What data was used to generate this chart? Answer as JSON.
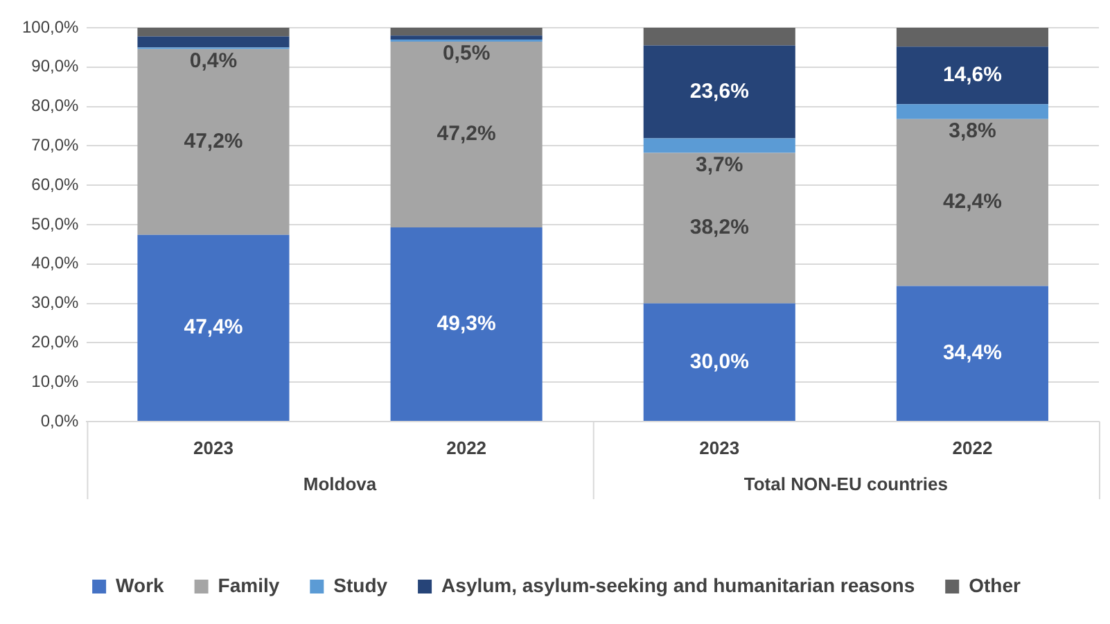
{
  "chart_data": {
    "type": "bar",
    "stacked": true,
    "categories": [
      "2023",
      "2022",
      "2023",
      "2022"
    ],
    "series": [
      {
        "name": "Work",
        "color": "#4472c4",
        "values": [
          47.4,
          49.3,
          30.0,
          34.4
        ],
        "value_labels": [
          "47,4%",
          "49,3%",
          "30,0%",
          "34,4%"
        ]
      },
      {
        "name": "Family",
        "color": "#a5a5a5",
        "values": [
          47.2,
          47.2,
          38.2,
          42.4
        ],
        "value_labels": [
          "47,2%",
          "47,2%",
          "38,2%",
          "42,4%"
        ]
      },
      {
        "name": "Study",
        "color": "#5b9bd5",
        "values": [
          0.4,
          0.5,
          3.7,
          3.8
        ],
        "value_labels": [
          "0,4%",
          "0,5%",
          "3,7%",
          "3,8%"
        ]
      },
      {
        "name": "Asylum, asylum-seeking and humanitarian reasons",
        "color": "#264478",
        "values": [
          2.8,
          1.0,
          23.6,
          14.6
        ],
        "value_labels": [
          null,
          null,
          "23,6%",
          "14,6%"
        ]
      },
      {
        "name": "Other",
        "color": "#636363",
        "values": [
          2.2,
          2.0,
          4.5,
          4.8
        ],
        "value_labels": [
          null,
          null,
          null,
          null
        ]
      }
    ],
    "ylim": [
      0,
      100
    ],
    "yticks": [
      {
        "value": 0,
        "label": "0,0%"
      },
      {
        "value": 10,
        "label": "10,0%"
      },
      {
        "value": 20,
        "label": "20,0%"
      },
      {
        "value": 30,
        "label": "30,0%"
      },
      {
        "value": 40,
        "label": "40,0%"
      },
      {
        "value": 50,
        "label": "50,0%"
      },
      {
        "value": 60,
        "label": "60,0%"
      },
      {
        "value": 70,
        "label": "70,0%"
      },
      {
        "value": 80,
        "label": "80,0%"
      },
      {
        "value": 90,
        "label": "90,0%"
      },
      {
        "value": 100,
        "label": "100,0%"
      }
    ],
    "grid": "y",
    "legend": "bottom",
    "annotations": [
      "Moldova",
      "Total NON-EU countries"
    ]
  }
}
